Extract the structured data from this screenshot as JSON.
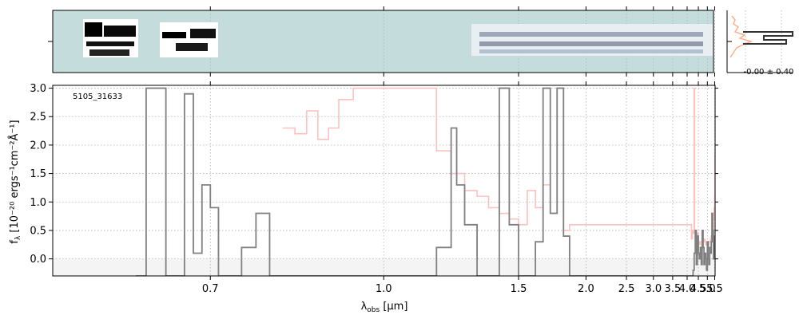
{
  "chart_data": {
    "type": "line",
    "object_label": "5105_31633",
    "xlabel": "λ",
    "xlabel_sub": "obs",
    "xlabel_unit": " [μm]",
    "ylabel_main": "f",
    "ylabel_sub": "λ",
    "ylabel_unit": " [10⁻²⁰ ergs⁻¹cm⁻²Å⁻¹]",
    "x_scale": "reciprocal",
    "xlim": [
      0.55,
      5.53
    ],
    "ylim": [
      -0.3,
      3.05
    ],
    "x_ticks": [
      0.7,
      1.0,
      1.5,
      2.0,
      2.5,
      3.0,
      3.5,
      4.0,
      4.5,
      5.0,
      5.5
    ],
    "x_tick_labels": [
      "0.7",
      "1.0",
      "1.5",
      "2.0",
      "2.5",
      "3.0",
      "3.5",
      "4.0",
      "4.5",
      "5.0",
      "5.5"
    ],
    "y_ticks": [
      0.0,
      0.5,
      1.0,
      1.5,
      2.0,
      2.5,
      3.0
    ],
    "y_tick_labels": [
      "0.0",
      "0.5",
      "1.0",
      "1.5",
      "2.0",
      "2.5",
      "3.0"
    ],
    "grid": true,
    "series": [
      {
        "role": "flux",
        "color": "#808080",
        "x": [
          0.62,
          0.63,
          0.64,
          0.65,
          0.67,
          0.68,
          0.69,
          0.7,
          0.71,
          0.72,
          0.74,
          0.76,
          0.78,
          0.8,
          1.1,
          1.15,
          1.2,
          1.22,
          1.25,
          1.3,
          1.35,
          1.4,
          1.45,
          1.5,
          1.55,
          1.6,
          1.65,
          1.7,
          1.75,
          1.8,
          1.85,
          1.9,
          4.25,
          4.3,
          4.35,
          4.4,
          4.45,
          4.5,
          4.55,
          4.6,
          4.65,
          4.7,
          4.75,
          4.8,
          4.85,
          4.9,
          4.95,
          5.0,
          5.05,
          5.1,
          5.15,
          5.2,
          5.25,
          5.3,
          5.35,
          5.4,
          5.45,
          5.5
        ],
        "y": [
          -0.3,
          3.0,
          3.0,
          -0.3,
          2.9,
          0.1,
          1.3,
          0.9,
          -0.3,
          -0.3,
          0.2,
          0.8,
          -0.3,
          -0.3,
          -0.3,
          0.2,
          2.3,
          1.3,
          0.6,
          -0.3,
          -0.3,
          3.0,
          0.6,
          -0.3,
          -0.3,
          0.3,
          3.0,
          0.8,
          3.0,
          0.4,
          -0.3,
          -0.3,
          -0.2,
          0.1,
          0.5,
          -0.1,
          0.4,
          0.1,
          0.0,
          0.2,
          -0.1,
          0.5,
          0.2,
          -0.1,
          0.1,
          0.0,
          -0.2,
          0.3,
          0.0,
          -0.1,
          0.2,
          0.1,
          0.3,
          0.8,
          0.5,
          0.0,
          0.4,
          0.1
        ]
      },
      {
        "role": "uncertainty",
        "color": "#ffc0c0",
        "x": [
          0.8,
          0.82,
          0.84,
          0.86,
          0.88,
          0.9,
          0.93,
          0.96,
          1.1,
          1.15,
          1.2,
          1.25,
          1.3,
          1.35,
          1.4,
          1.45,
          1.5,
          1.55,
          1.6,
          1.65,
          1.7,
          1.75,
          1.8,
          1.85,
          4.18,
          4.22,
          4.26,
          4.3,
          4.32,
          4.35,
          4.4,
          4.45,
          4.5,
          4.55,
          4.6,
          4.65,
          4.7,
          4.75,
          4.8,
          4.85,
          4.9,
          4.95,
          5.0,
          5.05,
          5.1,
          5.15,
          5.2,
          5.25,
          5.3,
          5.35,
          5.4,
          5.45,
          5.5,
          5.52
        ],
        "y": [
          2.3,
          2.2,
          2.6,
          2.1,
          2.3,
          2.8,
          3.0,
          3.0,
          3.0,
          1.9,
          1.5,
          1.2,
          1.1,
          0.9,
          0.8,
          0.7,
          0.6,
          1.2,
          0.9,
          1.3,
          0.8,
          3.0,
          0.5,
          0.6,
          0.35,
          0.5,
          0.45,
          3.0,
          0.45,
          0.5,
          0.4,
          0.45,
          0.3,
          0.25,
          0.3,
          0.3,
          0.25,
          0.3,
          0.35,
          0.3,
          0.25,
          0.3,
          0.3,
          0.25,
          0.3,
          0.3,
          0.35,
          0.4,
          0.45,
          0.5,
          0.7,
          0.9,
          1.1,
          1.8
        ]
      }
    ],
    "profile_panel": {
      "label": "-0.00 ± 0.40"
    }
  }
}
